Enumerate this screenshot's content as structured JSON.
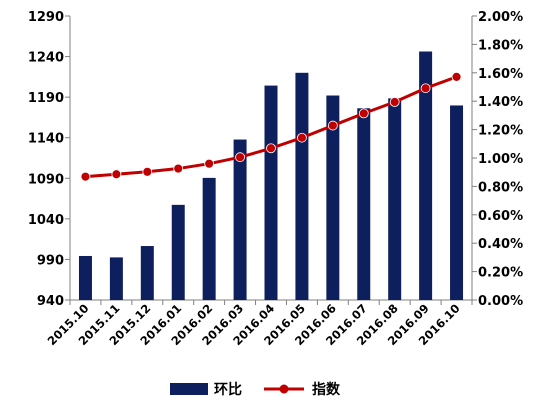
{
  "chart_data": {
    "type": "bar+line",
    "categories": [
      "2015.10",
      "2015.11",
      "2015.12",
      "2016.01",
      "2016.02",
      "2016.03",
      "2016.04",
      "2016.05",
      "2016.06",
      "2016.07",
      "2016.08",
      "2016.09",
      "2016.10"
    ],
    "series": [
      {
        "name": "环比",
        "type": "bar",
        "axis": "right",
        "color": "#0d1f5c",
        "values": [
          0.31,
          0.3,
          0.38,
          0.67,
          0.86,
          1.13,
          1.51,
          1.6,
          1.44,
          1.35,
          1.42,
          1.75,
          1.37
        ]
      },
      {
        "name": "指数",
        "type": "line",
        "axis": "left",
        "color": "#c00000",
        "values": [
          1092,
          1095,
          1098,
          1102,
          1108,
          1116,
          1127,
          1140,
          1155,
          1170,
          1184,
          1201,
          1215
        ]
      }
    ],
    "y_left": {
      "min": 940,
      "max": 1290,
      "ticks": [
        "940",
        "990",
        "1040",
        "1090",
        "1140",
        "1190",
        "1240",
        "1290"
      ]
    },
    "y_right": {
      "min": 0,
      "max": 2.0,
      "ticks": [
        "0.00%",
        "0.20%",
        "0.40%",
        "0.60%",
        "0.80%",
        "1.00%",
        "1.20%",
        "1.40%",
        "1.60%",
        "1.80%",
        "2.00%"
      ]
    },
    "grid": false,
    "legend_position": "bottom"
  }
}
